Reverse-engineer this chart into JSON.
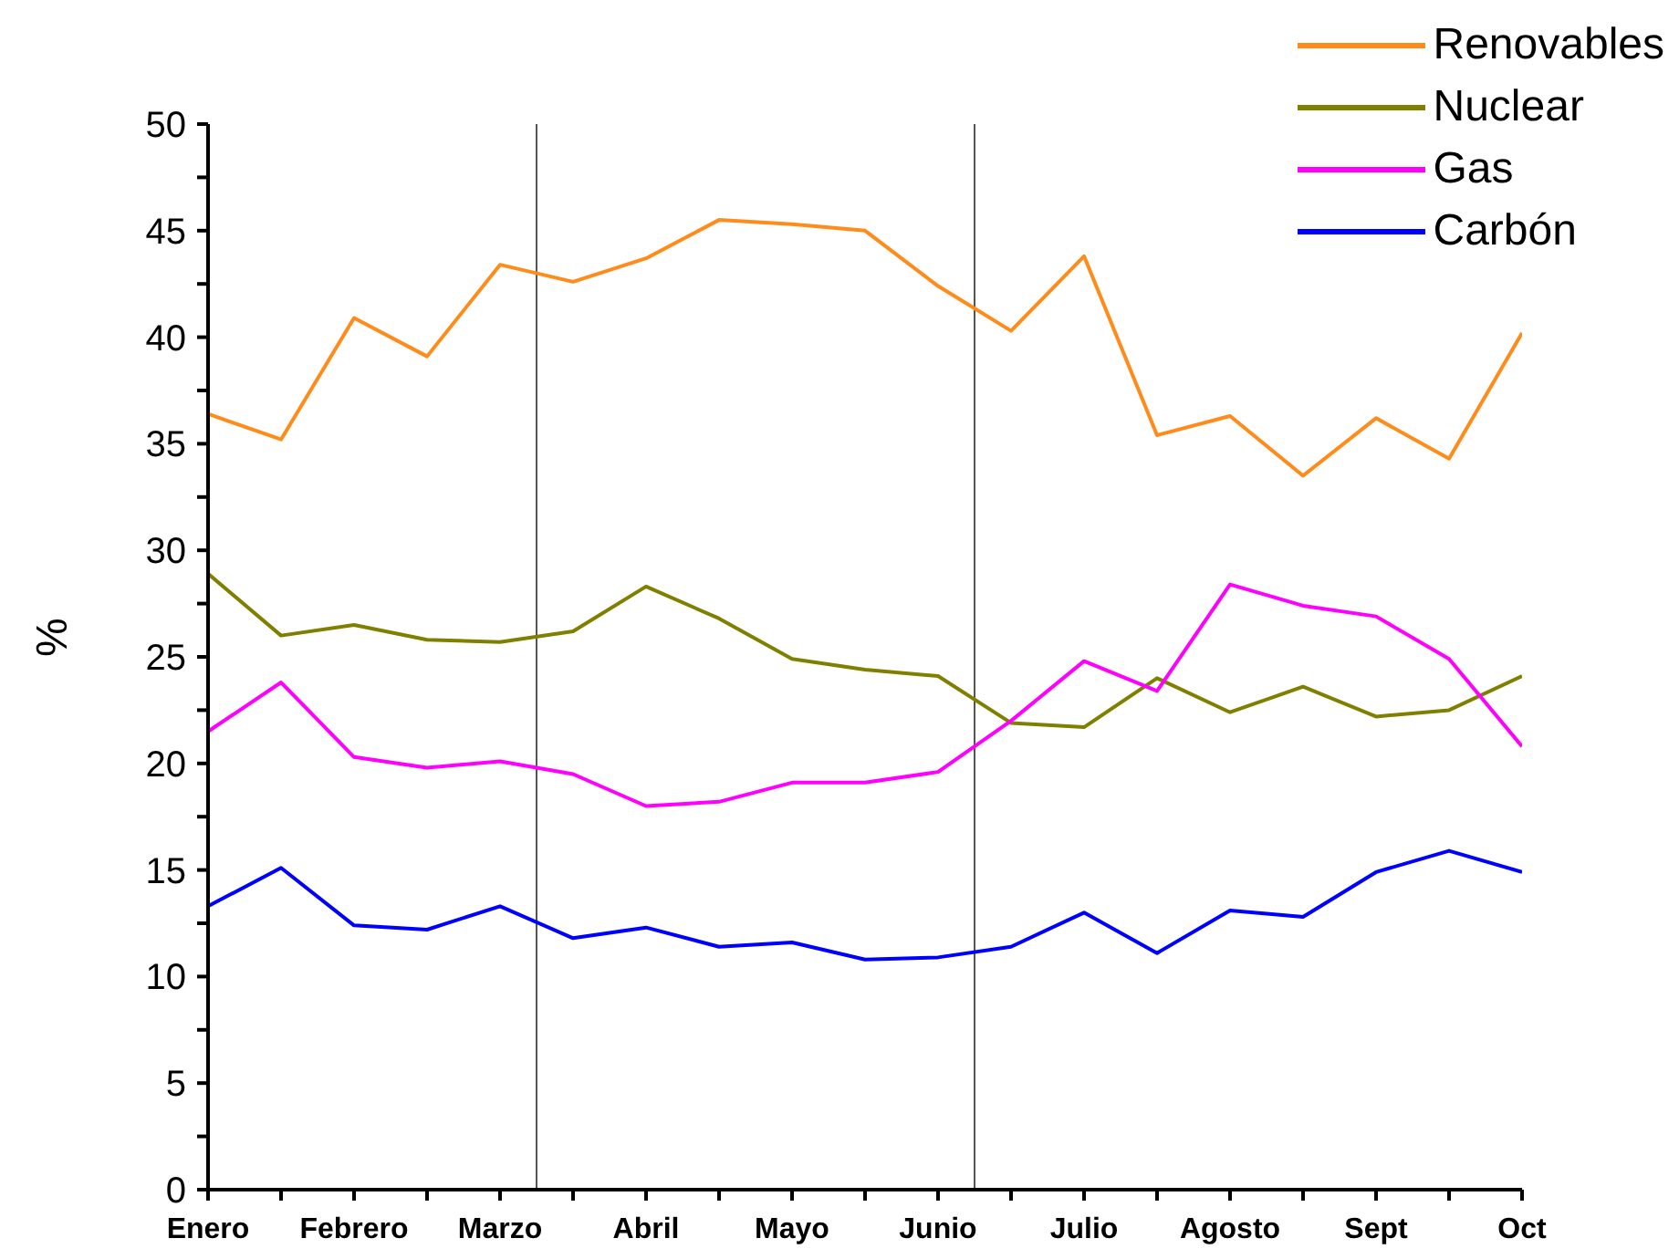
{
  "chart_data": {
    "type": "line",
    "ylabel": "%",
    "categories": [
      "Enero",
      null,
      "Febrero",
      null,
      "Marzo",
      null,
      "Abril",
      null,
      "Mayo",
      null,
      "Junio",
      null,
      "Julio",
      null,
      "Agosto",
      null,
      "Sept",
      null,
      "Oct"
    ],
    "ylim": [
      0,
      50
    ],
    "yticks": [
      0,
      {
        "value": 2.5,
        "label": null
      },
      5,
      {
        "value": 7.5,
        "label": null
      },
      10,
      {
        "value": 12.5,
        "label": null
      },
      15,
      {
        "value": 17.5,
        "label": null
      },
      20,
      {
        "value": 22.5,
        "label": null
      },
      25,
      {
        "value": 27.5,
        "label": null
      },
      30,
      {
        "value": 32.5,
        "label": null
      },
      35,
      {
        "value": 37.5,
        "label": null
      },
      40,
      {
        "value": 42.5,
        "label": null
      },
      45,
      {
        "value": 47.5,
        "label": null
      },
      50
    ],
    "series": [
      {
        "name": "Renovables",
        "color": "#ff8c1a",
        "values": [
          36.4,
          35.2,
          40.9,
          39.1,
          43.4,
          42.6,
          43.7,
          45.5,
          45.3,
          45.0,
          42.4,
          40.3,
          43.8,
          35.4,
          36.3,
          33.5,
          36.2,
          34.3,
          40.2
        ]
      },
      {
        "name": "Nuclear",
        "color": "#808000",
        "values": [
          28.9,
          26.0,
          26.5,
          25.8,
          25.7,
          26.2,
          28.3,
          26.8,
          24.9,
          24.4,
          24.1,
          21.9,
          21.7,
          24.0,
          22.4,
          23.6,
          22.2,
          22.5,
          24.1
        ]
      },
      {
        "name": "Gas",
        "color": "#ff00ff",
        "values": [
          21.5,
          23.8,
          20.3,
          19.8,
          20.1,
          19.5,
          18.0,
          18.2,
          19.1,
          19.1,
          19.6,
          22.0,
          24.8,
          23.4,
          28.4,
          27.4,
          26.9,
          24.9,
          20.8
        ]
      },
      {
        "name": "Carbón",
        "color": "#0000ff",
        "values": [
          13.3,
          15.1,
          12.4,
          12.2,
          13.3,
          11.8,
          12.3,
          11.4,
          11.6,
          10.8,
          10.9,
          11.4,
          13.0,
          11.1,
          13.1,
          12.8,
          14.9,
          15.9,
          14.9
        ]
      }
    ],
    "grid": false,
    "legend": "top right",
    "marker": "none",
    "line_style": "solid"
  }
}
